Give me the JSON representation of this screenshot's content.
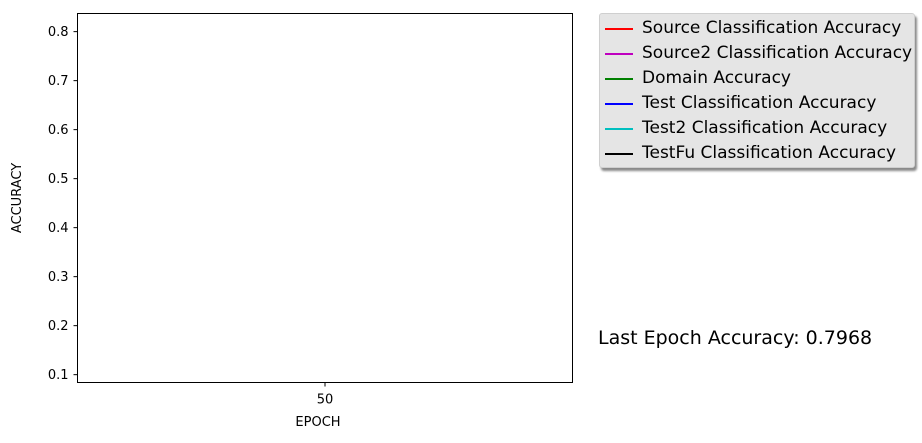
{
  "chart_data": {
    "type": "line",
    "title": "",
    "xlabel": "EPOCH",
    "ylabel": "ACCURACY",
    "x_ticks": [
      "50"
    ],
    "x_tick_values": [
      50
    ],
    "y_ticks": [
      "0.1",
      "0.2",
      "0.3",
      "0.4",
      "0.5",
      "0.6",
      "0.7",
      "0.8"
    ],
    "ylim": [
      0.084,
      0.837
    ],
    "xlim": [
      45,
      55
    ],
    "grid": false,
    "legend_position": "outside-top-right",
    "series": [
      {
        "name": "Source Classification Accuracy",
        "color": "#ff0000",
        "x": [],
        "y": []
      },
      {
        "name": "Source2 Classification Accuracy",
        "color": "#bf00bf",
        "x": [],
        "y": []
      },
      {
        "name": "Domain Accuracy",
        "color": "#008000",
        "x": [],
        "y": []
      },
      {
        "name": "Test Classification Accuracy",
        "color": "#0000ff",
        "x": [],
        "y": []
      },
      {
        "name": "Test2 Classification Accuracy",
        "color": "#00bfbf",
        "x": [],
        "y": []
      },
      {
        "name": "TestFu Classification Accuracy",
        "color": "#000000",
        "x": [],
        "y": []
      }
    ],
    "annotation": "Last Epoch Accuracy: 0.7968"
  }
}
